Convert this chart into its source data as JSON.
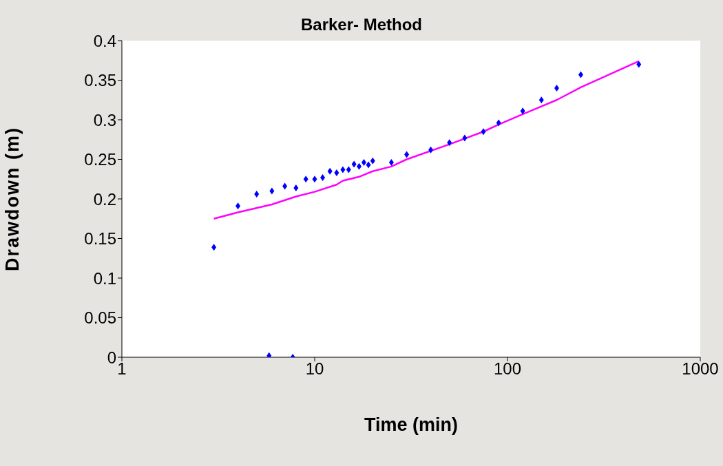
{
  "chart_data": {
    "type": "scatter",
    "title": "Barker- Method",
    "xlabel": "Time (min)",
    "ylabel": "Drawdown (m)",
    "log": "x",
    "xlim": [
      1,
      1000
    ],
    "xticks": [
      1,
      10,
      100,
      1000
    ],
    "ylim": [
      0,
      0.4
    ],
    "yticks": [
      0,
      0.05,
      0.1,
      0.15,
      0.2,
      0.25,
      0.3,
      0.35,
      0.4
    ],
    "grid": false,
    "legend": false,
    "series": [
      {
        "marker": "diamond",
        "color": "#0000ff",
        "x": [
          3,
          4,
          5,
          5.8,
          6,
          7,
          7.7,
          8,
          9,
          10,
          11,
          12,
          13,
          14,
          15,
          16,
          17,
          18,
          19,
          20,
          25,
          30,
          40,
          50,
          60,
          75,
          90,
          120,
          150,
          180,
          240,
          480
        ],
        "values": [
          0.139,
          0.191,
          0.206,
          0.002,
          0.21,
          0.216,
          0,
          0.214,
          0.225,
          0.225,
          0.227,
          0.235,
          0.233,
          0.237,
          0.237,
          0.244,
          0.241,
          0.246,
          0.243,
          0.248,
          0.246,
          0.256,
          0.262,
          0.271,
          0.277,
          0.285,
          0.296,
          0.311,
          0.325,
          0.34,
          0.357,
          0.37
        ]
      },
      {
        "type": "line",
        "marker": "none",
        "line_style": "solid",
        "color": "#ff00ff",
        "x": [
          3,
          4,
          6,
          8,
          10,
          13,
          14,
          17,
          20,
          25,
          30,
          50,
          75,
          90,
          120,
          180,
          240,
          480
        ],
        "values": [
          0.175,
          0.183,
          0.193,
          0.203,
          0.209,
          0.218,
          0.223,
          0.228,
          0.235,
          0.241,
          0.25,
          0.269,
          0.285,
          0.294,
          0.307,
          0.325,
          0.341,
          0.374
        ]
      }
    ]
  }
}
